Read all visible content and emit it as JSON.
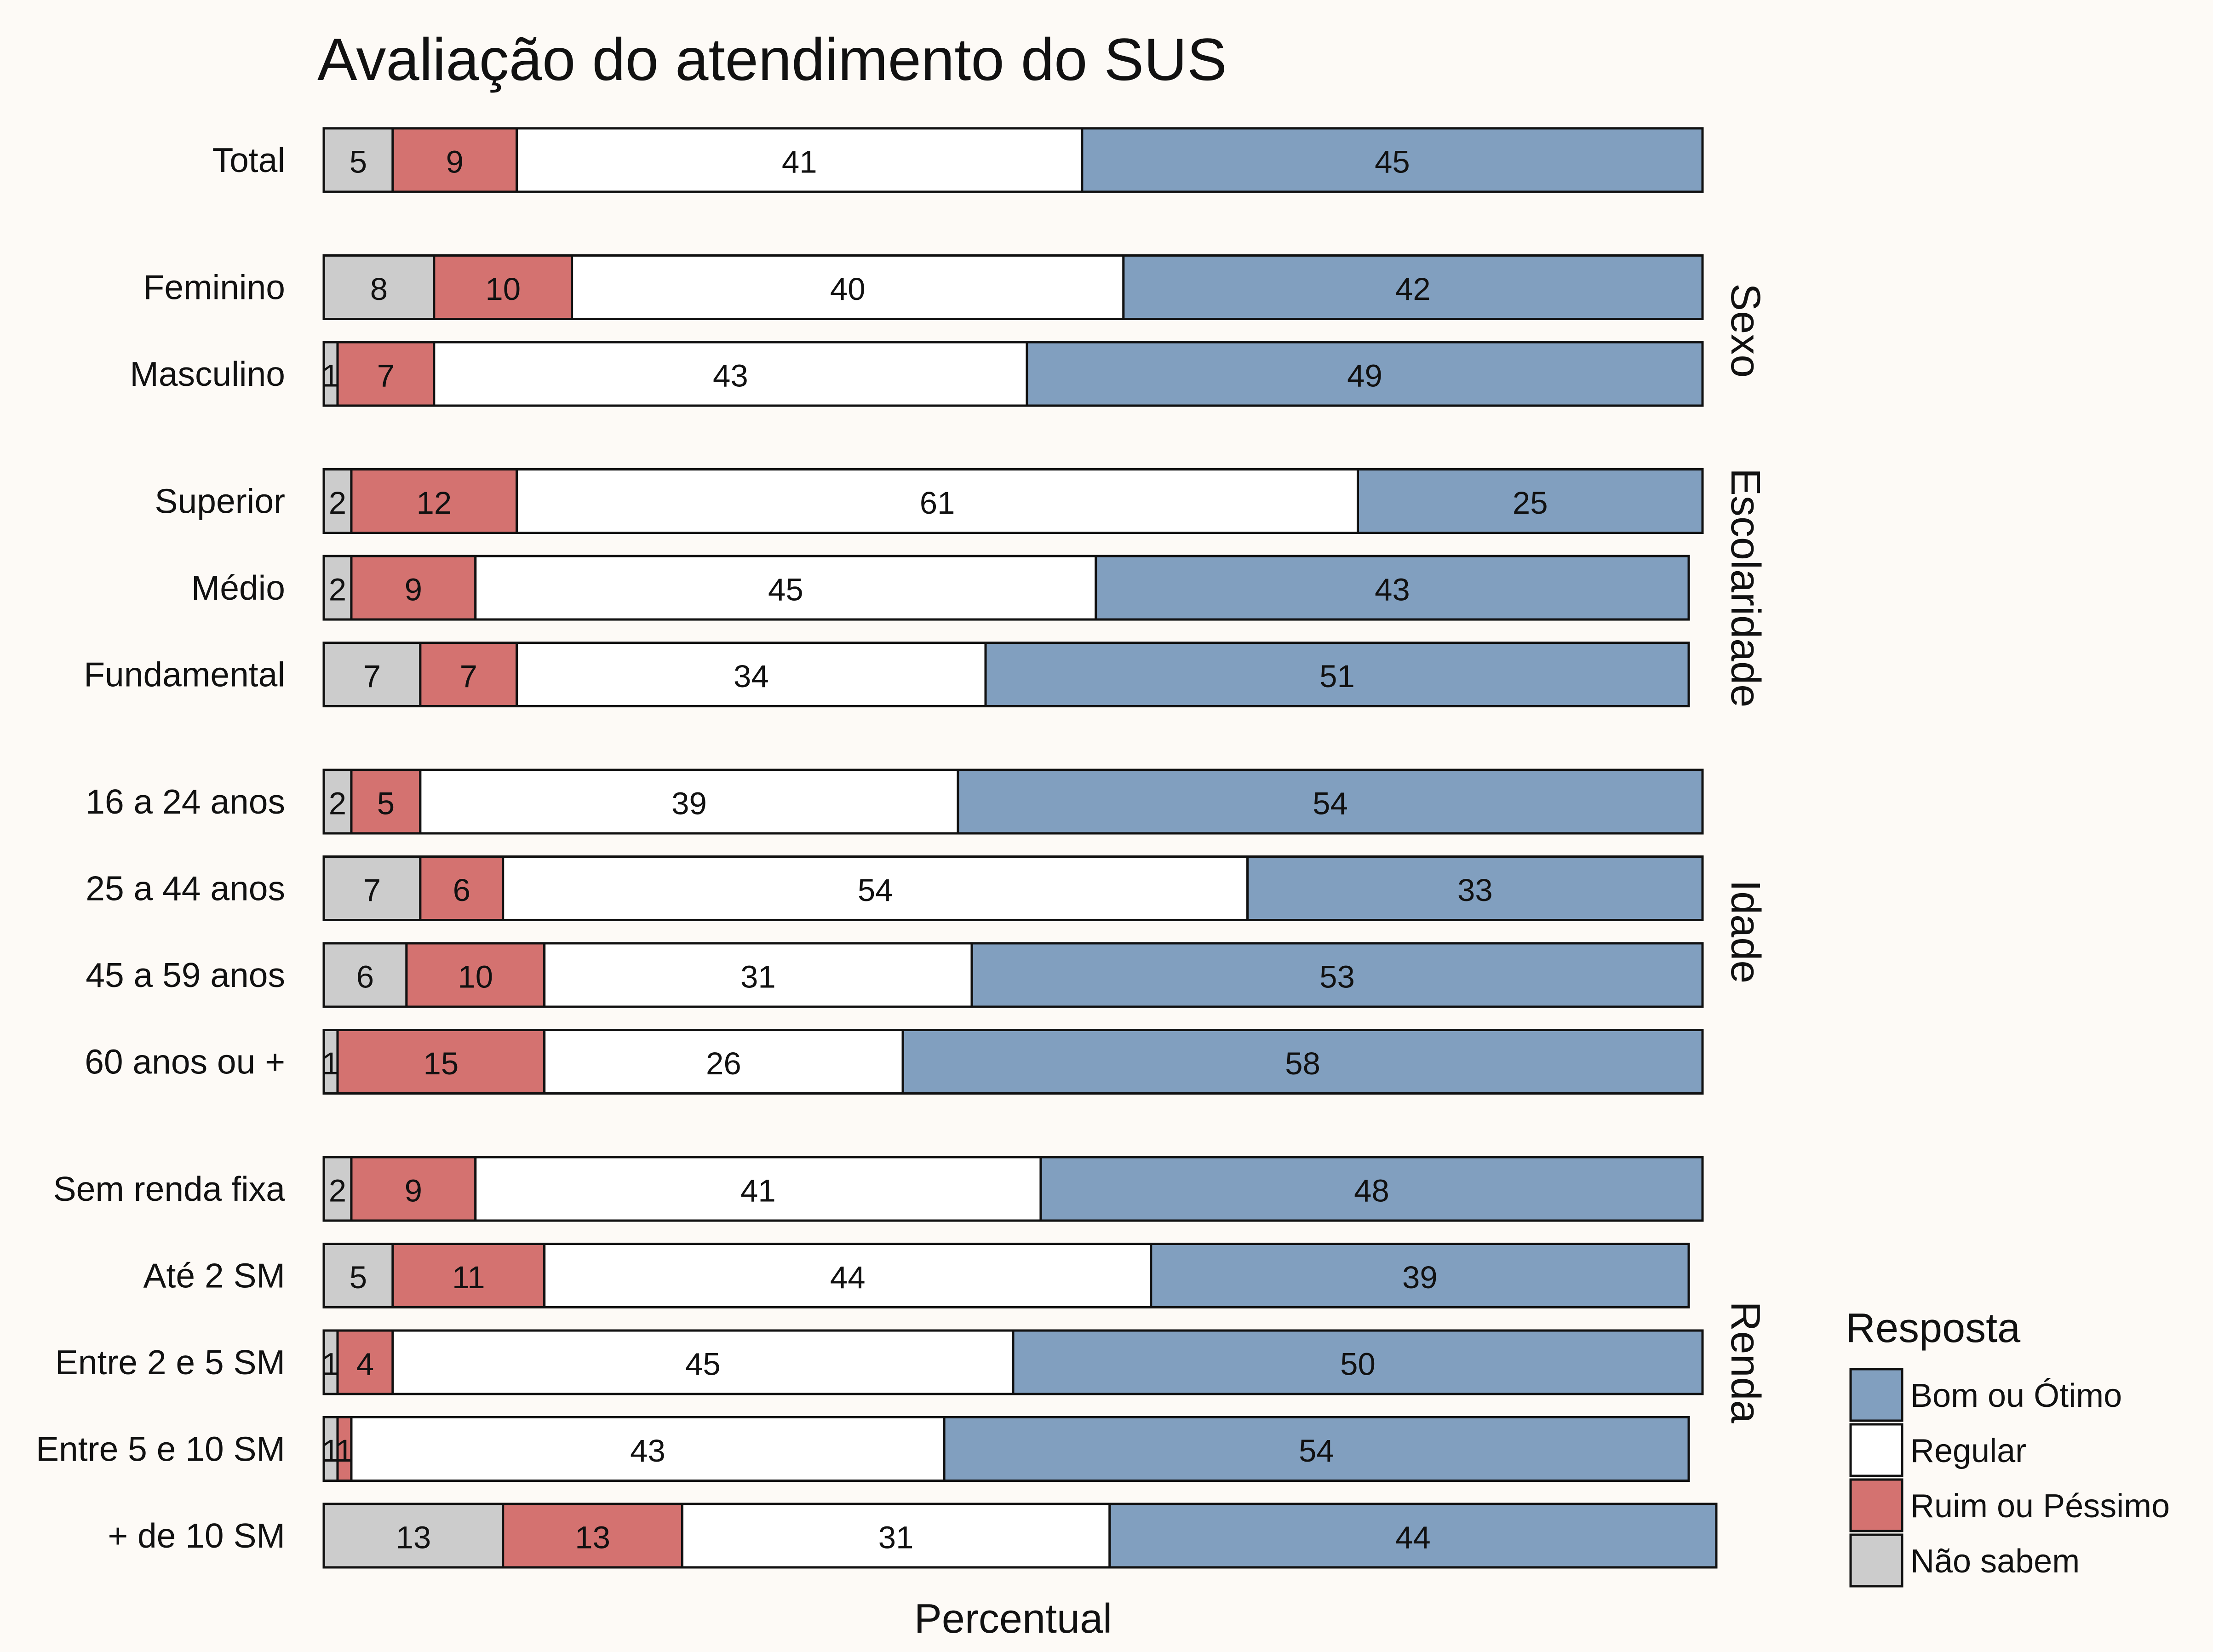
{
  "chart_data": {
    "type": "bar",
    "orientation": "horizontal",
    "stacked": true,
    "title": "Avaliação do atendimento do SUS",
    "xlabel": "Percentual",
    "ylabel": "",
    "xlim": [
      0,
      100
    ],
    "grid": false,
    "legend": {
      "title": "Resposta",
      "position": "right-bottom",
      "entries": [
        "Bom ou Ótimo",
        "Regular",
        "Ruim ou Péssimo",
        "Não sabem"
      ]
    },
    "stack_order": [
      "Não sabem",
      "Ruim ou Péssimo",
      "Regular",
      "Bom ou Ótimo"
    ],
    "colors": {
      "Bom ou Ótimo": "#819fbf",
      "Regular": "#ffffff",
      "Ruim ou Péssimo": "#d47270",
      "Não sabem": "#cccccc"
    },
    "groups": [
      {
        "facet": "",
        "rows": [
          {
            "label": "Total",
            "values": [
              5,
              9,
              41,
              45
            ]
          }
        ]
      },
      {
        "facet": "Sexo",
        "rows": [
          {
            "label": "Feminino",
            "values": [
              8,
              10,
              40,
              42
            ]
          },
          {
            "label": "Masculino",
            "values": [
              1,
              7,
              43,
              49
            ]
          }
        ]
      },
      {
        "facet": "Escolaridade",
        "rows": [
          {
            "label": "Superior",
            "values": [
              2,
              12,
              61,
              25
            ]
          },
          {
            "label": "Médio",
            "values": [
              2,
              9,
              45,
              43
            ]
          },
          {
            "label": "Fundamental",
            "values": [
              7,
              7,
              34,
              51
            ]
          }
        ]
      },
      {
        "facet": "Idade",
        "rows": [
          {
            "label": "16 a 24 anos",
            "values": [
              2,
              5,
              39,
              54
            ]
          },
          {
            "label": "25 a 44 anos",
            "values": [
              7,
              6,
              54,
              33
            ]
          },
          {
            "label": "45 a 59 anos",
            "values": [
              6,
              10,
              31,
              53
            ]
          },
          {
            "label": "60 anos ou +",
            "values": [
              1,
              15,
              26,
              58
            ]
          }
        ]
      },
      {
        "facet": "Renda",
        "rows": [
          {
            "label": "Sem renda fixa",
            "values": [
              2,
              9,
              41,
              48
            ]
          },
          {
            "label": "Até 2 SM",
            "values": [
              5,
              11,
              44,
              39
            ]
          },
          {
            "label": "Entre 2 e 5 SM",
            "values": [
              1,
              4,
              45,
              50
            ]
          },
          {
            "label": "Entre 5 e 10 SM",
            "values": [
              1,
              1,
              43,
              54
            ]
          },
          {
            "label": "+ de 10 SM",
            "values": [
              13,
              13,
              31,
              44
            ]
          }
        ]
      }
    ]
  }
}
